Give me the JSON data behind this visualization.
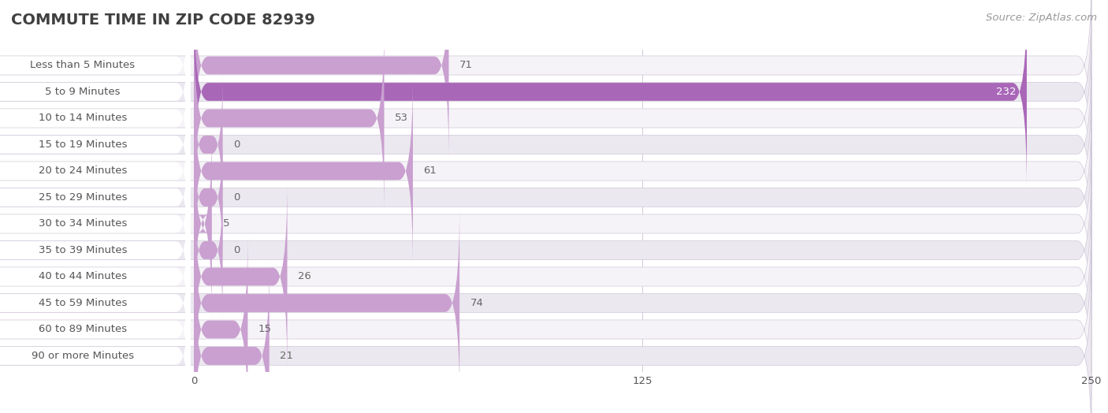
{
  "title": "COMMUTE TIME IN ZIP CODE 82939",
  "source": "Source: ZipAtlas.com",
  "categories": [
    "Less than 5 Minutes",
    "5 to 9 Minutes",
    "10 to 14 Minutes",
    "15 to 19 Minutes",
    "20 to 24 Minutes",
    "25 to 29 Minutes",
    "30 to 34 Minutes",
    "35 to 39 Minutes",
    "40 to 44 Minutes",
    "45 to 59 Minutes",
    "60 to 89 Minutes",
    "90 or more Minutes"
  ],
  "values": [
    71,
    232,
    53,
    0,
    61,
    0,
    5,
    0,
    26,
    74,
    15,
    21
  ],
  "xlim": [
    0,
    250
  ],
  "xticks": [
    0,
    125,
    250
  ],
  "bar_color_normal": "#c9a0d0",
  "bar_color_max": "#a967b8",
  "row_bg_odd": "#f5f3f7",
  "row_bg_even": "#ebe8ef",
  "row_border_color": "#d0c8d8",
  "label_bg_color": "#ffffff",
  "bg_color": "#ffffff",
  "title_color": "#404040",
  "label_color": "#555555",
  "value_color_inside": "#ffffff",
  "value_color_outside": "#666666",
  "source_color": "#999999",
  "grid_color": "#d0cad8",
  "title_fontsize": 14,
  "label_fontsize": 9.5,
  "value_fontsize": 9.5,
  "source_fontsize": 9.5,
  "tick_fontsize": 9.5
}
